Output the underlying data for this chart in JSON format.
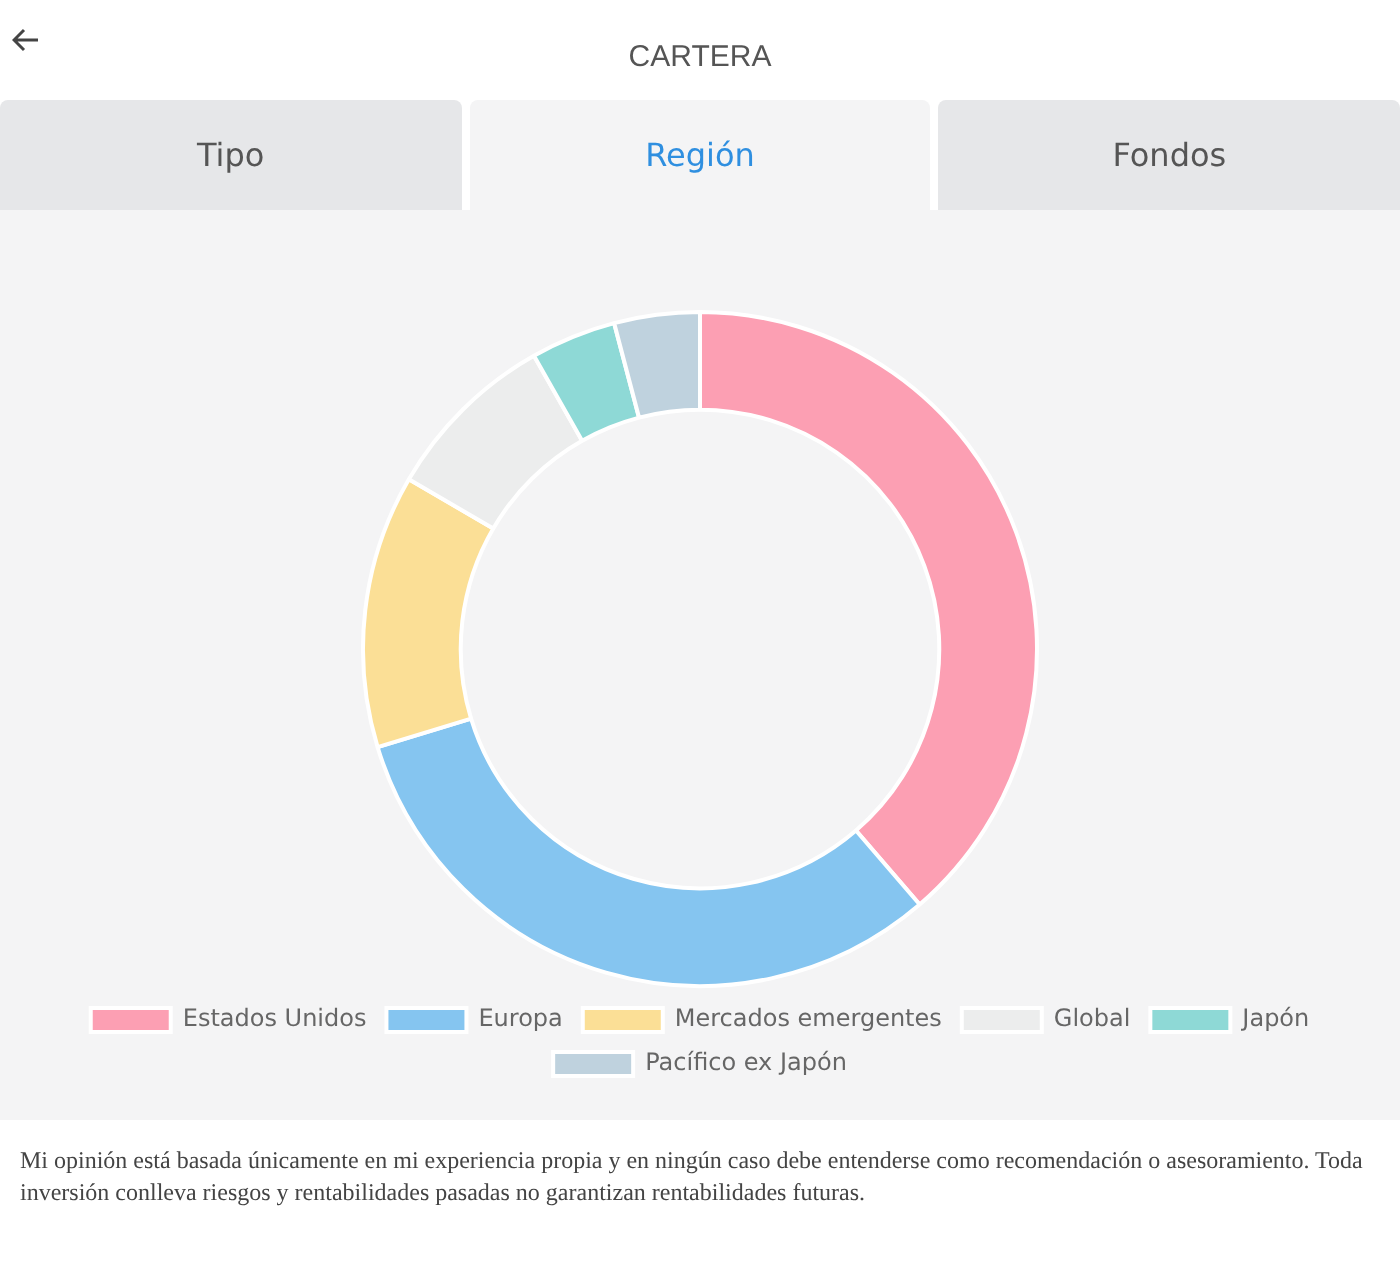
{
  "chart_data": {
    "type": "donut",
    "title": "CARTERA",
    "categories": [
      "Estados Unidos",
      "Europa",
      "Mercados emergentes",
      "Global",
      "Japón",
      "Pacífico ex Japón"
    ],
    "values": [
      38.7,
      31.6,
      13.1,
      8.4,
      4.1,
      4.1
    ],
    "colors": [
      "#fc9fb3",
      "#85c5f0",
      "#fbdf96",
      "#eceded",
      "#8ed9d6",
      "#bfd2de"
    ],
    "legend": "bottom",
    "annotations": [
      "Tipo",
      "Región",
      "Fondos",
      "Mi opinión está basada únicamente en mi experiencia propia y en ningún caso debe entenderse como recomendación o asesoramiento. Toda inversión conlleva riesgos y rentabilidades pasadas no garantizan rentabilidades futuras."
    ]
  }
}
